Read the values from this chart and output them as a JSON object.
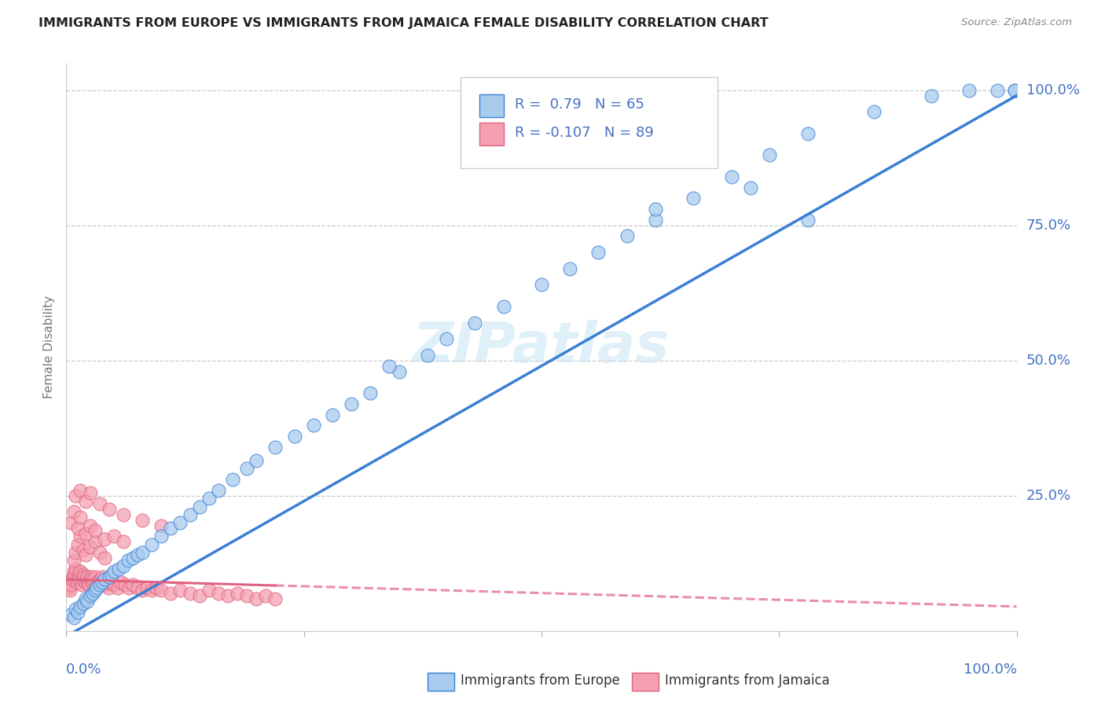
{
  "title": "IMMIGRANTS FROM EUROPE VS IMMIGRANTS FROM JAMAICA FEMALE DISABILITY CORRELATION CHART",
  "source": "Source: ZipAtlas.com",
  "ylabel": "Female Disability",
  "ylabel_right_ticks": [
    "100.0%",
    "75.0%",
    "50.0%",
    "25.0%"
  ],
  "ylabel_right_vals": [
    1.0,
    0.75,
    0.5,
    0.25
  ],
  "R_blue": 0.79,
  "N_blue": 65,
  "R_pink": -0.107,
  "N_pink": 89,
  "blue_color": "#A8CBEE",
  "blue_line_color": "#3A7FD5",
  "pink_color": "#F4A0B0",
  "pink_line_color": "#E06080",
  "background_color": "#FFFFFF",
  "grid_color": "#CCCCCC",
  "title_color": "#222222",
  "axis_label_color": "#4472C4",
  "watermark": "ZIPatlas",
  "legend_label_blue": "Immigrants from Europe",
  "legend_label_pink": "Immigrants from Jamaica",
  "blue_scatter_x": [
    0.005,
    0.008,
    0.01,
    0.012,
    0.015,
    0.018,
    0.02,
    0.022,
    0.025,
    0.028,
    0.03,
    0.032,
    0.035,
    0.038,
    0.04,
    0.045,
    0.048,
    0.05,
    0.055,
    0.06,
    0.065,
    0.07,
    0.075,
    0.08,
    0.09,
    0.1,
    0.11,
    0.12,
    0.13,
    0.14,
    0.15,
    0.16,
    0.175,
    0.19,
    0.2,
    0.22,
    0.24,
    0.26,
    0.28,
    0.3,
    0.32,
    0.35,
    0.38,
    0.4,
    0.43,
    0.46,
    0.5,
    0.53,
    0.56,
    0.59,
    0.62,
    0.66,
    0.7,
    0.74,
    0.78,
    0.85,
    0.91,
    0.95,
    0.98,
    0.998,
    0.998,
    0.62,
    0.72,
    0.78,
    0.34
  ],
  "blue_scatter_y": [
    0.03,
    0.025,
    0.04,
    0.035,
    0.045,
    0.05,
    0.06,
    0.055,
    0.065,
    0.07,
    0.075,
    0.08,
    0.085,
    0.09,
    0.095,
    0.1,
    0.105,
    0.11,
    0.115,
    0.12,
    0.13,
    0.135,
    0.14,
    0.145,
    0.16,
    0.175,
    0.19,
    0.2,
    0.215,
    0.23,
    0.245,
    0.26,
    0.28,
    0.3,
    0.315,
    0.34,
    0.36,
    0.38,
    0.4,
    0.42,
    0.44,
    0.48,
    0.51,
    0.54,
    0.57,
    0.6,
    0.64,
    0.67,
    0.7,
    0.73,
    0.76,
    0.8,
    0.84,
    0.88,
    0.92,
    0.96,
    0.99,
    1.0,
    1.0,
    1.0,
    1.0,
    0.78,
    0.82,
    0.76,
    0.49
  ],
  "pink_scatter_x": [
    0.002,
    0.003,
    0.004,
    0.005,
    0.006,
    0.007,
    0.008,
    0.009,
    0.01,
    0.011,
    0.012,
    0.013,
    0.014,
    0.015,
    0.016,
    0.017,
    0.018,
    0.019,
    0.02,
    0.021,
    0.022,
    0.023,
    0.024,
    0.025,
    0.026,
    0.027,
    0.028,
    0.03,
    0.032,
    0.034,
    0.036,
    0.038,
    0.04,
    0.042,
    0.044,
    0.046,
    0.05,
    0.054,
    0.058,
    0.062,
    0.066,
    0.07,
    0.075,
    0.08,
    0.085,
    0.09,
    0.095,
    0.1,
    0.11,
    0.12,
    0.13,
    0.14,
    0.15,
    0.16,
    0.17,
    0.18,
    0.19,
    0.2,
    0.21,
    0.22,
    0.008,
    0.01,
    0.012,
    0.015,
    0.018,
    0.02,
    0.025,
    0.03,
    0.035,
    0.04,
    0.005,
    0.008,
    0.012,
    0.015,
    0.02,
    0.025,
    0.03,
    0.04,
    0.05,
    0.06,
    0.01,
    0.015,
    0.02,
    0.025,
    0.035,
    0.045,
    0.06,
    0.08,
    0.1
  ],
  "pink_scatter_y": [
    0.08,
    0.09,
    0.075,
    0.085,
    0.095,
    0.1,
    0.11,
    0.105,
    0.115,
    0.09,
    0.1,
    0.095,
    0.105,
    0.11,
    0.085,
    0.095,
    0.105,
    0.1,
    0.09,
    0.095,
    0.1,
    0.09,
    0.085,
    0.095,
    0.1,
    0.09,
    0.095,
    0.1,
    0.09,
    0.085,
    0.095,
    0.1,
    0.085,
    0.09,
    0.08,
    0.09,
    0.085,
    0.08,
    0.09,
    0.085,
    0.08,
    0.085,
    0.08,
    0.075,
    0.08,
    0.075,
    0.08,
    0.075,
    0.07,
    0.075,
    0.07,
    0.065,
    0.075,
    0.07,
    0.065,
    0.07,
    0.065,
    0.06,
    0.065,
    0.06,
    0.13,
    0.145,
    0.16,
    0.175,
    0.15,
    0.14,
    0.155,
    0.165,
    0.145,
    0.135,
    0.2,
    0.22,
    0.19,
    0.21,
    0.18,
    0.195,
    0.185,
    0.17,
    0.175,
    0.165,
    0.25,
    0.26,
    0.24,
    0.255,
    0.235,
    0.225,
    0.215,
    0.205,
    0.195
  ]
}
